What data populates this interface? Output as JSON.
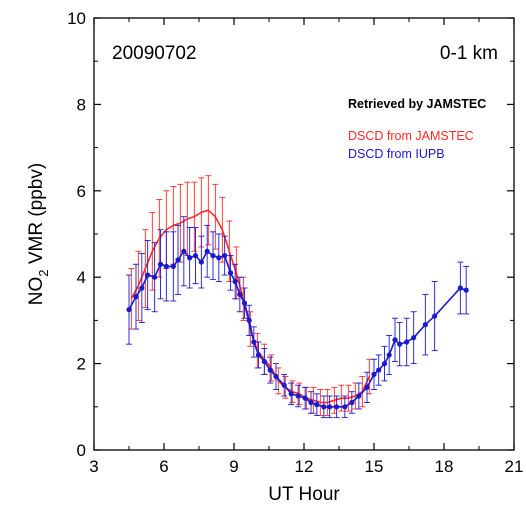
{
  "chart_data": {
    "type": "line",
    "xlabel": "UT Hour",
    "ylabel_main": "NO",
    "ylabel_sub": "2",
    "ylabel_rest": " VMR (ppbv)",
    "xlim": [
      3,
      21
    ],
    "ylim": [
      0,
      10
    ],
    "xticks": [
      3,
      6,
      9,
      12,
      15,
      18,
      21
    ],
    "yticks": [
      0,
      2,
      4,
      6,
      8,
      10
    ],
    "annotations": {
      "date": "20090702",
      "layer": "0-1 km",
      "retrieved": "Retrieved by JAMSTEC"
    },
    "legend": {
      "position": "top-right",
      "entries": [
        {
          "label": "DSCD from JAMSTEC",
          "color": "#ff2a2a"
        },
        {
          "label": "DSCD from IUPB",
          "color": "#1a1acc"
        }
      ]
    },
    "series": [
      {
        "name": "DSCD from JAMSTEC",
        "color": "#ff2a2a",
        "markers": false,
        "points": [
          [
            4.6,
            3.5,
            0.7
          ],
          [
            4.9,
            3.8,
            0.8
          ],
          [
            5.2,
            4.2,
            0.9
          ],
          [
            5.5,
            4.6,
            0.9
          ],
          [
            5.8,
            4.9,
            0.9
          ],
          [
            6.1,
            5.1,
            0.9
          ],
          [
            6.4,
            5.2,
            0.9
          ],
          [
            6.7,
            5.25,
            0.9
          ],
          [
            7.0,
            5.35,
            0.85
          ],
          [
            7.3,
            5.4,
            0.8
          ],
          [
            7.6,
            5.5,
            0.8
          ],
          [
            7.9,
            5.55,
            0.8
          ],
          [
            8.2,
            5.4,
            0.75
          ],
          [
            8.5,
            5.1,
            0.75
          ],
          [
            8.8,
            4.6,
            0.7
          ],
          [
            9.1,
            4.1,
            0.6
          ],
          [
            9.4,
            3.5,
            0.5
          ],
          [
            9.7,
            2.8,
            0.4
          ],
          [
            10.0,
            2.3,
            0.4
          ],
          [
            10.3,
            2.1,
            0.35
          ],
          [
            10.6,
            1.9,
            0.3
          ],
          [
            10.9,
            1.6,
            0.3
          ],
          [
            11.2,
            1.45,
            0.25
          ],
          [
            11.5,
            1.35,
            0.25
          ],
          [
            11.8,
            1.3,
            0.25
          ],
          [
            12.1,
            1.2,
            0.25
          ],
          [
            12.4,
            1.15,
            0.3
          ],
          [
            12.7,
            1.1,
            0.3
          ],
          [
            13.0,
            1.1,
            0.3
          ],
          [
            13.3,
            1.15,
            0.3
          ],
          [
            13.6,
            1.2,
            0.3
          ],
          [
            13.9,
            1.2,
            0.3
          ],
          [
            14.2,
            1.25,
            0.3
          ],
          [
            14.5,
            1.35,
            0.35
          ],
          [
            14.8,
            1.7,
            0.4
          ]
        ]
      },
      {
        "name": "DSCD from IUPB",
        "color": "#1a1acc",
        "markers": true,
        "points": [
          [
            4.5,
            3.25,
            0.8
          ],
          [
            4.8,
            3.55,
            0.75
          ],
          [
            5.05,
            3.75,
            0.8
          ],
          [
            5.3,
            4.05,
            0.8
          ],
          [
            5.6,
            4.0,
            0.8
          ],
          [
            5.85,
            4.3,
            0.8
          ],
          [
            6.1,
            4.25,
            0.8
          ],
          [
            6.4,
            4.25,
            0.8
          ],
          [
            6.6,
            4.4,
            0.8
          ],
          [
            6.85,
            4.6,
            0.8
          ],
          [
            7.1,
            4.45,
            0.7
          ],
          [
            7.35,
            4.5,
            0.65
          ],
          [
            7.6,
            4.35,
            0.6
          ],
          [
            7.85,
            4.6,
            0.6
          ],
          [
            8.1,
            4.5,
            0.55
          ],
          [
            8.35,
            4.45,
            0.55
          ],
          [
            8.6,
            4.5,
            0.45
          ],
          [
            8.85,
            4.1,
            0.4
          ],
          [
            9.05,
            3.9,
            0.4
          ],
          [
            9.25,
            3.6,
            0.4
          ],
          [
            9.45,
            3.4,
            0.35
          ],
          [
            9.65,
            3.0,
            0.35
          ],
          [
            9.85,
            2.5,
            0.35
          ],
          [
            10.05,
            2.2,
            0.3
          ],
          [
            10.3,
            2.05,
            0.3
          ],
          [
            10.55,
            1.85,
            0.3
          ],
          [
            10.8,
            1.7,
            0.3
          ],
          [
            11.15,
            1.5,
            0.25
          ],
          [
            11.45,
            1.3,
            0.25
          ],
          [
            11.75,
            1.25,
            0.25
          ],
          [
            12.05,
            1.2,
            0.25
          ],
          [
            12.3,
            1.1,
            0.25
          ],
          [
            12.55,
            1.05,
            0.25
          ],
          [
            12.85,
            1.0,
            0.25
          ],
          [
            13.1,
            1.0,
            0.25
          ],
          [
            13.4,
            1.0,
            0.25
          ],
          [
            13.75,
            1.0,
            0.25
          ],
          [
            14.05,
            1.1,
            0.25
          ],
          [
            14.35,
            1.25,
            0.3
          ],
          [
            14.7,
            1.45,
            0.35
          ],
          [
            15.0,
            1.75,
            0.35
          ],
          [
            15.2,
            1.85,
            0.35
          ],
          [
            15.45,
            2.0,
            0.4
          ],
          [
            15.65,
            2.2,
            0.45
          ],
          [
            15.9,
            2.55,
            0.5
          ],
          [
            16.1,
            2.45,
            0.5
          ],
          [
            16.4,
            2.5,
            0.55
          ],
          [
            16.7,
            2.6,
            0.6
          ],
          [
            17.2,
            2.9,
            0.7
          ],
          [
            17.6,
            3.1,
            0.8
          ],
          [
            18.7,
            3.75,
            0.6
          ],
          [
            18.95,
            3.7,
            0.55
          ]
        ]
      }
    ]
  }
}
